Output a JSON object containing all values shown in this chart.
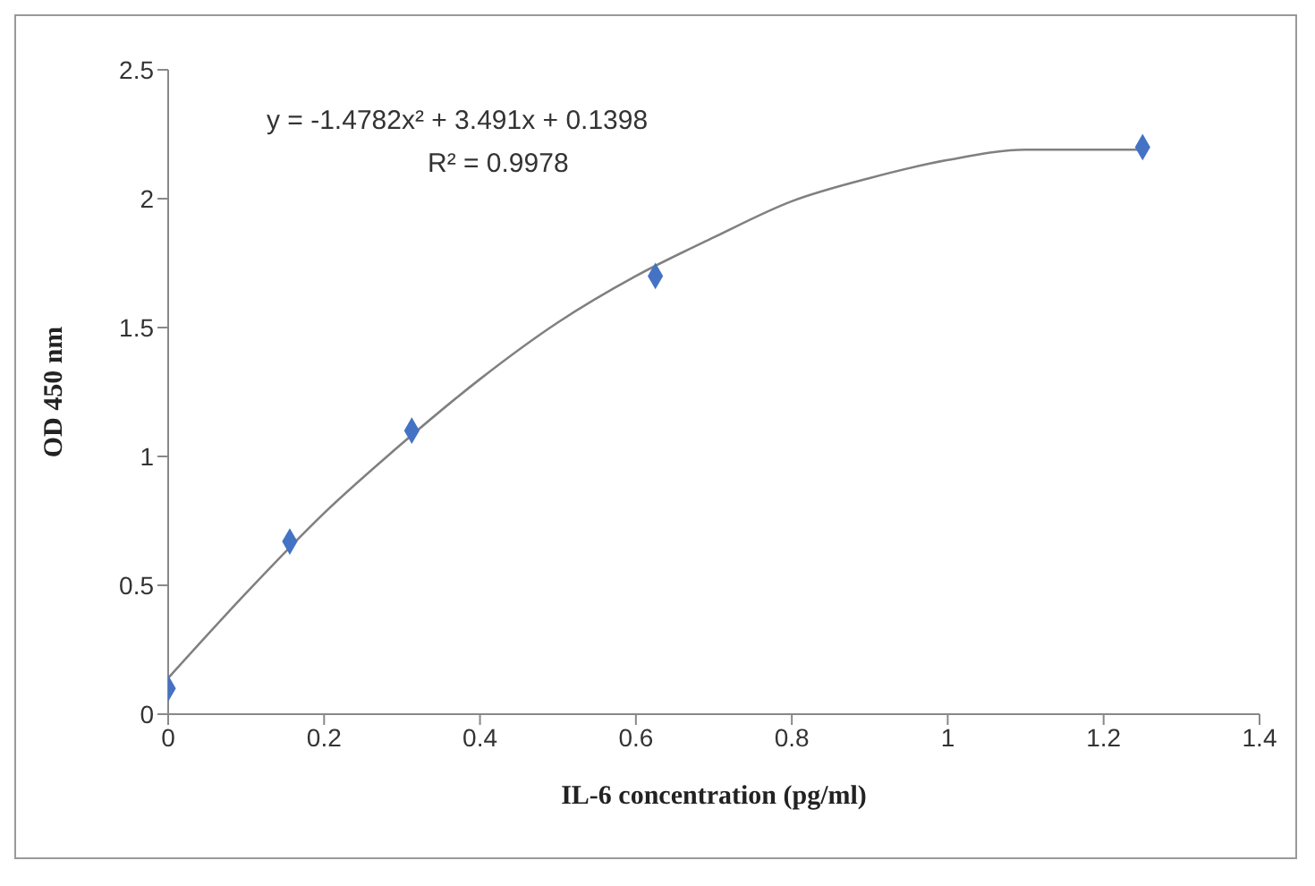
{
  "chart_data": {
    "type": "scatter",
    "xlabel": "IL-6 concentration (pg/ml)",
    "ylabel": "OD 450 nm",
    "annotations": [
      "y = -1.4782x² + 3.491x + 0.1398",
      "R² = 0.9978"
    ],
    "series": [
      {
        "color": "#4472c4",
        "marker": "diamond",
        "x": [
          0,
          0.156,
          0.3125,
          0.625,
          1.25
        ],
        "values": [
          0.1,
          0.67,
          1.1,
          1.7,
          2.2
        ]
      },
      {
        "type": "line",
        "color": "#808080",
        "marker": "none",
        "x": [
          0,
          0.1,
          0.2,
          0.3,
          0.4,
          0.5,
          0.6,
          0.7,
          0.8,
          0.9,
          1.0,
          1.1,
          1.2,
          1.25
        ],
        "values": [
          0.14,
          0.47,
          0.78,
          1.05,
          1.3,
          1.52,
          1.7,
          1.85,
          1.99,
          2.08,
          2.15,
          2.19,
          2.19,
          2.19
        ]
      }
    ],
    "xlim": [
      0,
      1.4
    ],
    "xticks": [
      0,
      0.2,
      0.4,
      0.6,
      0.8,
      1,
      1.2,
      1.4
    ],
    "ylim": [
      0,
      2.5
    ],
    "yticks": [
      0,
      0.5,
      1,
      1.5,
      2,
      2.5
    ],
    "grid": false,
    "legend": false
  }
}
